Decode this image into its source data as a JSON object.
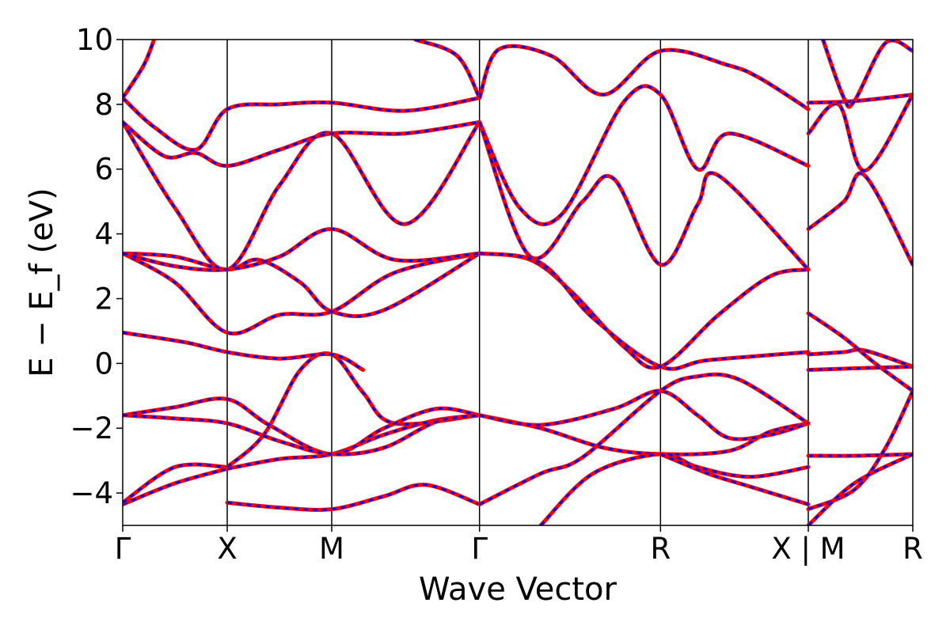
{
  "chart_data": {
    "type": "line",
    "title": "",
    "xlabel": "Wave Vector",
    "ylabel": "E − E_f (eV)",
    "ylim": [
      -5,
      10
    ],
    "yticks": [
      -4,
      -2,
      0,
      2,
      4,
      6,
      8,
      10
    ],
    "ytick_labels": [
      "−4",
      "−2",
      "0",
      "2",
      "4",
      "6",
      "8",
      "10"
    ],
    "kpoints": [
      {
        "label": "Γ",
        "x": 0
      },
      {
        "label": "X",
        "x": 1
      },
      {
        "label": "M",
        "x": 2
      },
      {
        "label": "Γ",
        "x": 3.414
      },
      {
        "label": "R",
        "x": 5.146
      },
      {
        "label": "X",
        "x": 6.56
      },
      {
        "label": "M",
        "x": 6.56
      },
      {
        "label": "R",
        "x": 7.56
      }
    ],
    "kpoint_tick_labels": [
      "Γ",
      "X",
      "M",
      "Γ",
      "R",
      "X | M",
      "R"
    ],
    "kpoint_tick_x": [
      0,
      1,
      2,
      3.414,
      5.146,
      6.56,
      7.56
    ],
    "xlim": [
      0,
      7.56
    ],
    "grid": false,
    "line_styles": {
      "dft": {
        "color": "#ff0000",
        "style": "solid"
      },
      "model": {
        "color": "#0000ff",
        "style": "dashed"
      }
    },
    "series": [
      {
        "values": [
          [
            0,
            -4.35
          ],
          [
            0.5,
            -3.7
          ],
          [
            1,
            -3.25
          ]
        ]
      },
      {
        "values": [
          [
            0,
            -4.3
          ],
          [
            0.5,
            -3.2
          ],
          [
            1,
            -3.2
          ]
        ]
      },
      {
        "values": [
          [
            1,
            -4.3
          ],
          [
            1.5,
            -4.45
          ],
          [
            2,
            -4.5
          ],
          [
            2.5,
            -4.1
          ],
          [
            2.9,
            -3.75
          ],
          [
            3.414,
            -4.35
          ]
        ]
      },
      {
        "values": [
          [
            1,
            -3.25
          ],
          [
            1.5,
            -2.95
          ],
          [
            2,
            -2.8
          ],
          [
            2.5,
            -2.2
          ],
          [
            3.0,
            -1.75
          ],
          [
            3.414,
            -1.6
          ]
        ]
      },
      {
        "values": [
          [
            1,
            -3.2
          ],
          [
            1.35,
            -2.2
          ],
          [
            1.7,
            -0.2
          ],
          [
            2,
            0.28
          ],
          [
            2.3,
            -0.9
          ],
          [
            2.6,
            -1.85
          ],
          [
            3.414,
            -1.6
          ]
        ]
      },
      {
        "values": [
          [
            0,
            -1.6
          ],
          [
            0.5,
            -1.35
          ],
          [
            1,
            -1.1
          ],
          [
            1.4,
            -1.9
          ],
          [
            2,
            -2.8
          ],
          [
            2.5,
            -2.0
          ],
          [
            3.0,
            -1.4
          ],
          [
            3.414,
            -1.6
          ]
        ]
      },
      {
        "values": [
          [
            0,
            -1.6
          ],
          [
            0.5,
            -1.7
          ],
          [
            1,
            -1.85
          ],
          [
            1.5,
            -2.4
          ],
          [
            2,
            -2.8
          ],
          [
            2.5,
            -2.6
          ],
          [
            3.0,
            -1.8
          ],
          [
            3.414,
            -1.6
          ]
        ]
      },
      {
        "values": [
          [
            0,
            0.95
          ],
          [
            0.6,
            0.65
          ],
          [
            1,
            0.35
          ],
          [
            1.5,
            0.15
          ],
          [
            2,
            0.28
          ],
          [
            2.3,
            -0.2
          ]
        ]
      },
      {
        "values": [
          [
            0,
            3.4
          ],
          [
            0.5,
            2.5
          ],
          [
            1,
            0.95
          ],
          [
            1.5,
            1.5
          ],
          [
            2,
            1.6
          ],
          [
            2.6,
            2.8
          ],
          [
            3.414,
            3.4
          ]
        ]
      },
      {
        "values": [
          [
            0,
            3.4
          ],
          [
            0.5,
            3.3
          ],
          [
            1,
            2.9
          ],
          [
            1.3,
            3.2
          ],
          [
            1.7,
            2.5
          ],
          [
            2,
            1.6
          ],
          [
            2.5,
            1.65
          ],
          [
            3.414,
            3.4
          ]
        ]
      },
      {
        "values": [
          [
            0,
            3.4
          ],
          [
            0.5,
            3.0
          ],
          [
            1,
            2.9
          ],
          [
            1.5,
            3.3
          ],
          [
            2,
            4.15
          ],
          [
            2.6,
            3.2
          ],
          [
            3.414,
            3.4
          ]
        ]
      },
      {
        "values": [
          [
            0,
            7.45
          ],
          [
            0.5,
            4.8
          ],
          [
            1,
            2.9
          ],
          [
            1.5,
            5.5
          ],
          [
            2,
            7.1
          ],
          [
            2.7,
            4.3
          ],
          [
            3.414,
            7.45
          ]
        ]
      },
      {
        "values": [
          [
            0,
            7.45
          ],
          [
            0.4,
            6.4
          ],
          [
            0.7,
            6.5
          ],
          [
            1,
            6.1
          ],
          [
            1.5,
            6.6
          ],
          [
            2,
            7.1
          ],
          [
            2.7,
            7.1
          ],
          [
            3.414,
            7.45
          ]
        ]
      },
      {
        "values": [
          [
            0,
            8.2
          ],
          [
            0.3,
            7.3
          ],
          [
            0.7,
            6.6
          ],
          [
            1,
            7.85
          ],
          [
            1.5,
            8.0
          ],
          [
            2,
            8.05
          ],
          [
            2.7,
            7.8
          ],
          [
            3.414,
            8.2
          ]
        ]
      },
      {
        "values": [
          [
            0,
            8.2
          ],
          [
            0.2,
            9.2
          ],
          [
            0.3,
            10
          ]
        ]
      },
      {
        "values": [
          [
            2.8,
            10
          ],
          [
            3.2,
            9.5
          ],
          [
            3.414,
            8.2
          ]
        ]
      },
      {
        "values": [
          [
            3.414,
            8.2
          ],
          [
            3.6,
            9.7
          ],
          [
            4.1,
            9.5
          ],
          [
            4.6,
            8.3
          ],
          [
            5.146,
            9.65
          ],
          [
            5.8,
            9.2
          ],
          [
            6.1,
            8.8
          ],
          [
            6.56,
            7.85
          ]
        ]
      },
      {
        "values": [
          [
            3.414,
            7.45
          ],
          [
            3.8,
            4.8
          ],
          [
            4.2,
            4.6
          ],
          [
            4.8,
            8.1
          ],
          [
            5.146,
            8.3
          ],
          [
            5.5,
            6.0
          ],
          [
            5.8,
            7.1
          ],
          [
            6.56,
            6.1
          ]
        ]
      },
      {
        "values": [
          [
            3.414,
            7.45
          ],
          [
            3.9,
            3.3
          ],
          [
            4.4,
            5.0
          ],
          [
            4.7,
            5.7
          ],
          [
            5.146,
            3.05
          ],
          [
            5.5,
            4.9
          ],
          [
            5.7,
            5.8
          ],
          [
            6.56,
            2.9
          ]
        ]
      },
      {
        "values": [
          [
            3.414,
            3.4
          ],
          [
            3.9,
            3.2
          ],
          [
            4.3,
            2.2
          ],
          [
            4.8,
            0.5
          ],
          [
            5.146,
            -0.1
          ],
          [
            5.7,
            1.5
          ],
          [
            6.2,
            2.7
          ],
          [
            6.56,
            2.9
          ]
        ]
      },
      {
        "values": [
          [
            3.414,
            3.4
          ],
          [
            4.0,
            3.1
          ],
          [
            4.5,
            1.4
          ],
          [
            5.146,
            -0.1
          ],
          [
            5.6,
            0.1
          ],
          [
            6.56,
            0.35
          ]
        ]
      },
      {
        "values": [
          [
            3.414,
            -1.6
          ],
          [
            4.0,
            -2.0
          ],
          [
            4.6,
            -2.6
          ],
          [
            5.146,
            -2.8
          ],
          [
            5.8,
            -2.7
          ],
          [
            6.2,
            -2.1
          ],
          [
            6.56,
            -1.85
          ]
        ]
      },
      {
        "values": [
          [
            3.414,
            -1.6
          ],
          [
            4.0,
            -1.9
          ],
          [
            4.7,
            -1.4
          ],
          [
            5.146,
            -0.85
          ],
          [
            5.5,
            -1.6
          ],
          [
            5.8,
            -2.3
          ],
          [
            6.2,
            -2.2
          ],
          [
            6.56,
            -1.85
          ]
        ]
      },
      {
        "values": [
          [
            3.414,
            -4.35
          ],
          [
            4.0,
            -3.4
          ],
          [
            4.4,
            -2.9
          ],
          [
            5.146,
            -0.85
          ],
          [
            5.5,
            -0.4
          ],
          [
            5.9,
            -0.5
          ],
          [
            6.56,
            -1.85
          ]
        ]
      },
      {
        "values": [
          [
            4.0,
            -5.0
          ],
          [
            4.5,
            -3.4
          ],
          [
            5.146,
            -2.8
          ],
          [
            5.5,
            -3.2
          ],
          [
            6.0,
            -3.5
          ],
          [
            6.56,
            -3.2
          ]
        ]
      },
      {
        "values": [
          [
            5.146,
            -2.8
          ],
          [
            5.6,
            -3.4
          ],
          [
            6.0,
            -3.8
          ],
          [
            6.56,
            -4.35
          ]
        ]
      },
      {
        "values": [
          [
            6.56,
            1.55
          ],
          [
            6.9,
            0.8
          ],
          [
            7.2,
            0.0
          ],
          [
            7.56,
            -0.85
          ]
        ]
      },
      {
        "values": [
          [
            6.56,
            0.28
          ],
          [
            6.9,
            0.35
          ],
          [
            7.1,
            0.4
          ],
          [
            7.56,
            -0.1
          ]
        ]
      },
      {
        "values": [
          [
            6.56,
            -0.2
          ],
          [
            7.0,
            -0.15
          ],
          [
            7.56,
            -0.1
          ]
        ]
      },
      {
        "values": [
          [
            6.56,
            -2.85
          ],
          [
            7.0,
            -2.85
          ],
          [
            7.56,
            -2.8
          ]
        ]
      },
      {
        "values": [
          [
            6.56,
            -4.5
          ],
          [
            7.0,
            -3.9
          ],
          [
            7.3,
            -2.6
          ],
          [
            7.56,
            -0.85
          ]
        ]
      },
      {
        "values": [
          [
            6.56,
            -5.0
          ],
          [
            7.0,
            -3.7
          ],
          [
            7.56,
            -2.8
          ]
        ]
      },
      {
        "values": [
          [
            6.56,
            4.15
          ],
          [
            6.9,
            5.0
          ],
          [
            7.1,
            5.8
          ],
          [
            7.56,
            3.05
          ]
        ]
      },
      {
        "values": [
          [
            6.56,
            7.1
          ],
          [
            6.85,
            8.0
          ],
          [
            7.1,
            5.95
          ],
          [
            7.56,
            8.3
          ]
        ]
      },
      {
        "values": [
          [
            6.56,
            8.05
          ],
          [
            7.0,
            8.1
          ],
          [
            7.56,
            8.3
          ]
        ]
      },
      {
        "values": [
          [
            6.7,
            10
          ],
          [
            6.9,
            8.2
          ],
          [
            7.0,
            8.1
          ],
          [
            7.3,
            9.9
          ],
          [
            7.56,
            9.65
          ]
        ]
      }
    ]
  }
}
